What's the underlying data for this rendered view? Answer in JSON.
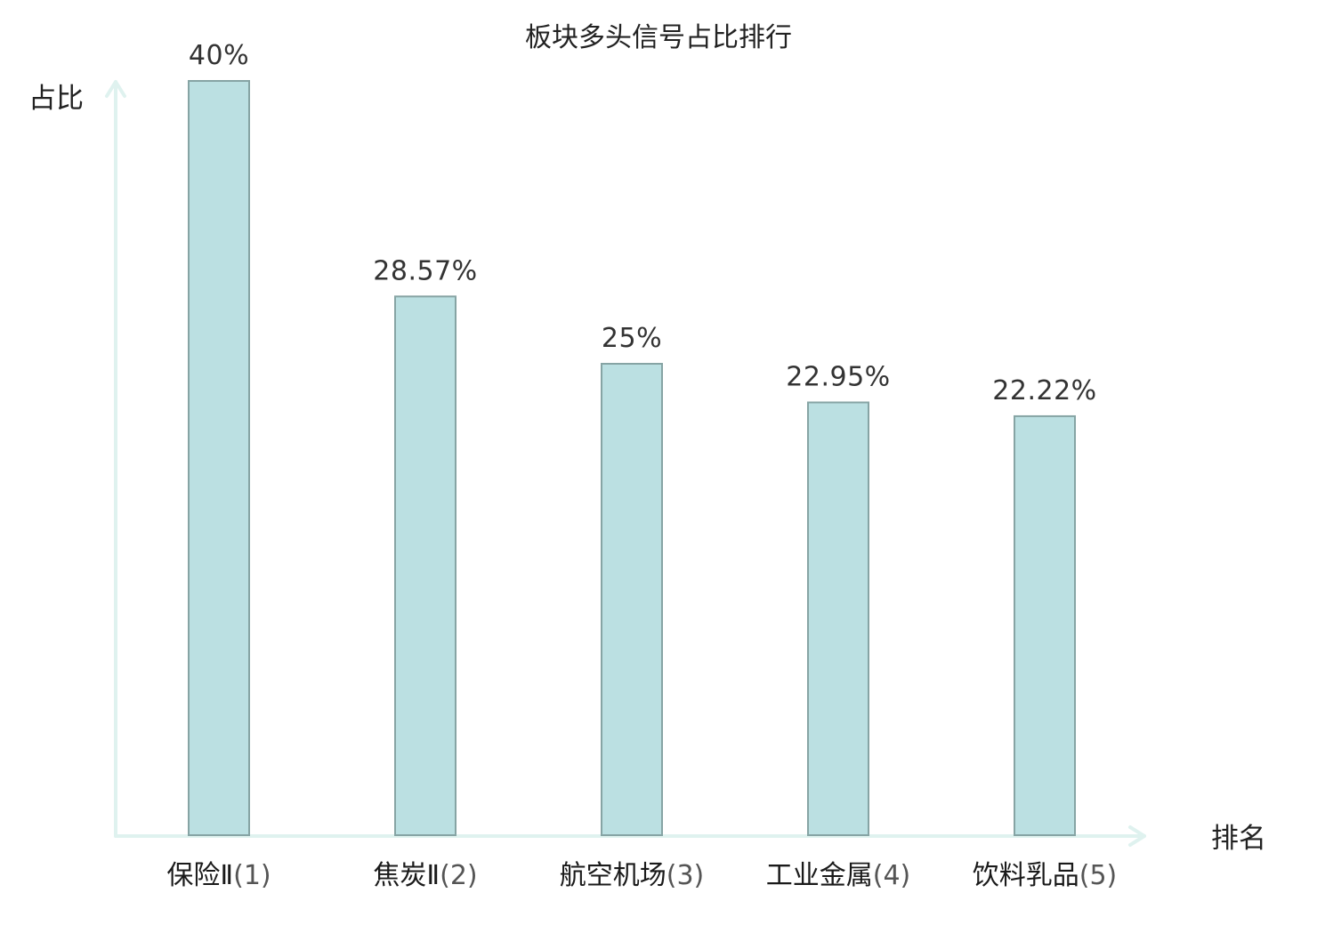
{
  "chart_data": {
    "type": "bar",
    "title": "板块多头信号占比排行",
    "xlabel": "排名",
    "ylabel": "占比",
    "categories": [
      {
        "name": "保险Ⅱ",
        "rank": "(1)",
        "highlight": false
      },
      {
        "name": "焦炭Ⅱ",
        "rank": "(2)",
        "highlight": true
      },
      {
        "name": "航空机场",
        "rank": "(3)",
        "highlight": false
      },
      {
        "name": "工业金属",
        "rank": "(4)",
        "highlight": false
      },
      {
        "name": "饮料乳品",
        "rank": "(5)",
        "highlight": false
      }
    ],
    "values": [
      40,
      28.57,
      25,
      22.95,
      22.22
    ],
    "value_labels": [
      "40%",
      "28.57%",
      "25%",
      "22.95%",
      "22.22%"
    ],
    "ylim": [
      0,
      40
    ],
    "grid": false,
    "legend": "none",
    "colors": {
      "bar_fill": "#bbe0e2",
      "bar_stroke": "#86a4a4",
      "axis": "#dff2ef",
      "highlight_text": "#dd1111"
    }
  }
}
